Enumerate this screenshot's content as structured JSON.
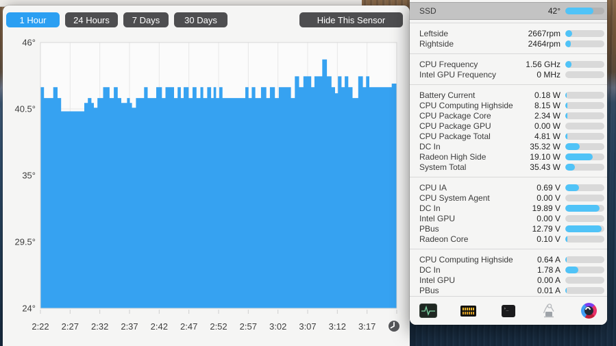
{
  "toolbar": {
    "ranges": [
      {
        "label": "1 Hour",
        "selected": true
      },
      {
        "label": "24 Hours",
        "selected": false
      },
      {
        "label": "7 Days",
        "selected": false
      },
      {
        "label": "30 Days",
        "selected": false
      }
    ],
    "hide_sensor_label": "Hide This Sensor"
  },
  "chart_data": {
    "type": "area",
    "title": "",
    "unit": "°",
    "selected_range": "1 Hour",
    "ylim": [
      24,
      46
    ],
    "grid": true,
    "legend": false,
    "y_ticks": [
      {
        "value": 46,
        "label": "46°"
      },
      {
        "value": 40.5,
        "label": "40.5°"
      },
      {
        "value": 35,
        "label": "35°"
      },
      {
        "value": 29.5,
        "label": "29.5°"
      },
      {
        "value": 24,
        "label": "24°"
      }
    ],
    "x_ticks": [
      "2:22",
      "2:27",
      "2:32",
      "2:37",
      "2:42",
      "2:47",
      "2:52",
      "2:57",
      "3:02",
      "3:07",
      "3:12",
      "3:17"
    ],
    "x_tick_spacing_minutes": 5,
    "series": [
      {
        "name": "SSD",
        "points": [
          [
            0,
            42.3
          ],
          [
            0.01,
            41.4
          ],
          [
            0.036,
            42.3
          ],
          [
            0.048,
            41.4
          ],
          [
            0.058,
            40.3
          ],
          [
            0.123,
            41
          ],
          [
            0.133,
            41.4
          ],
          [
            0.143,
            41
          ],
          [
            0.15,
            40.6
          ],
          [
            0.16,
            41.4
          ],
          [
            0.176,
            42.3
          ],
          [
            0.194,
            41.4
          ],
          [
            0.206,
            42.3
          ],
          [
            0.217,
            41.4
          ],
          [
            0.227,
            41
          ],
          [
            0.243,
            41.4
          ],
          [
            0.251,
            41
          ],
          [
            0.257,
            40.6
          ],
          [
            0.268,
            41.4
          ],
          [
            0.291,
            42.3
          ],
          [
            0.301,
            41.4
          ],
          [
            0.325,
            42.3
          ],
          [
            0.341,
            41.4
          ],
          [
            0.351,
            42.3
          ],
          [
            0.375,
            41.4
          ],
          [
            0.385,
            42.3
          ],
          [
            0.394,
            41.4
          ],
          [
            0.402,
            42.3
          ],
          [
            0.416,
            41.4
          ],
          [
            0.427,
            42.3
          ],
          [
            0.438,
            41.4
          ],
          [
            0.449,
            42.3
          ],
          [
            0.457,
            41.4
          ],
          [
            0.468,
            42.3
          ],
          [
            0.479,
            41.4
          ],
          [
            0.486,
            42.3
          ],
          [
            0.493,
            41.4
          ],
          [
            0.502,
            42.3
          ],
          [
            0.511,
            41.4
          ],
          [
            0.575,
            42.3
          ],
          [
            0.584,
            41.4
          ],
          [
            0.593,
            42.3
          ],
          [
            0.603,
            41.4
          ],
          [
            0.619,
            42.3
          ],
          [
            0.634,
            41.4
          ],
          [
            0.644,
            42.3
          ],
          [
            0.658,
            41.4
          ],
          [
            0.669,
            42.3
          ],
          [
            0.703,
            41.4
          ],
          [
            0.714,
            43.2
          ],
          [
            0.726,
            42.3
          ],
          [
            0.738,
            43.2
          ],
          [
            0.76,
            42.3
          ],
          [
            0.769,
            43.2
          ],
          [
            0.791,
            44.6
          ],
          [
            0.804,
            43.2
          ],
          [
            0.817,
            42.3
          ],
          [
            0.827,
            41.8
          ],
          [
            0.835,
            43.2
          ],
          [
            0.845,
            42.3
          ],
          [
            0.854,
            43.2
          ],
          [
            0.864,
            42.3
          ],
          [
            0.876,
            41.4
          ],
          [
            0.892,
            43.2
          ],
          [
            0.905,
            42.3
          ],
          [
            0.914,
            43.2
          ],
          [
            0.923,
            42.3
          ],
          [
            0.986,
            42.6
          ],
          [
            1,
            42.6
          ]
        ]
      }
    ]
  },
  "sidebar": {
    "sections": [
      {
        "rows": [
          {
            "label": "SSD",
            "value": "42°",
            "fill": 0.72,
            "selected": true
          }
        ]
      },
      {
        "rows": [
          {
            "label": "Leftside",
            "value": "2667rpm",
            "fill": 0.17
          },
          {
            "label": "Rightside",
            "value": "2464rpm",
            "fill": 0.14
          }
        ]
      },
      {
        "rows": [
          {
            "label": "CPU Frequency",
            "value": "1.56 GHz",
            "fill": 0.15
          },
          {
            "label": "Intel GPU Frequency",
            "value": "0 MHz",
            "fill": 0
          }
        ]
      },
      {
        "rows": [
          {
            "label": "Battery Current",
            "value": "0.18 W",
            "fill": 0.03
          },
          {
            "label": "CPU Computing Highside",
            "value": "8.15 W",
            "fill": 0.05
          },
          {
            "label": "CPU Package Core",
            "value": "2.34 W",
            "fill": 0.05
          },
          {
            "label": "CPU Package GPU",
            "value": "0.00 W",
            "fill": 0
          },
          {
            "label": "CPU Package Total",
            "value": "4.81 W",
            "fill": 0.05
          },
          {
            "label": "DC In",
            "value": "35.32 W",
            "fill": 0.37
          },
          {
            "label": "Radeon High Side",
            "value": "19.10 W",
            "fill": 0.7
          },
          {
            "label": "System Total",
            "value": "35.43 W",
            "fill": 0.25
          }
        ]
      },
      {
        "rows": [
          {
            "label": "CPU IA",
            "value": "0.69 V",
            "fill": 0.35
          },
          {
            "label": "CPU System Agent",
            "value": "0.00 V",
            "fill": 0
          },
          {
            "label": "DC In",
            "value": "19.89 V",
            "fill": 0.88
          },
          {
            "label": "Intel GPU",
            "value": "0.00 V",
            "fill": 0
          },
          {
            "label": "PBus",
            "value": "12.79 V",
            "fill": 0.93
          },
          {
            "label": "Radeon Core",
            "value": "0.10 V",
            "fill": 0.06
          }
        ]
      },
      {
        "rows": [
          {
            "label": "CPU Computing Highside",
            "value": "0.64 A",
            "fill": 0.04
          },
          {
            "label": "DC In",
            "value": "1.78 A",
            "fill": 0.33
          },
          {
            "label": "Intel GPU",
            "value": "0.00 A",
            "fill": 0
          },
          {
            "label": "PBus",
            "value": "0.01 A",
            "fill": 0.03
          }
        ]
      }
    ],
    "dock_icons": [
      "activity-waveform-icon",
      "lcd-panel-icon",
      "terminal-icon",
      "hand-truck-icon",
      "gauge-icon"
    ]
  },
  "colors": {
    "accent_blue": "#2b9ff2",
    "chart_fill": "#36a2f1",
    "bar_fill": "#50c3f7",
    "button_dark": "#4e4e50",
    "selected_row": "#c3c3c3"
  }
}
